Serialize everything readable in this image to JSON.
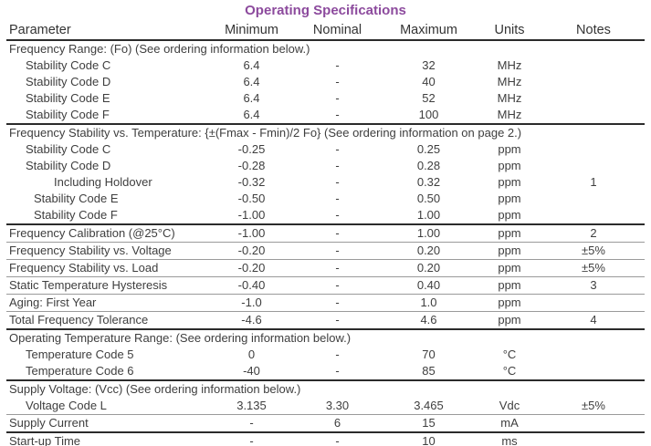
{
  "title": "Operating Specifications",
  "accent_color": "#8c4a9d",
  "table": {
    "columns": [
      "Parameter",
      "Minimum",
      "Nominal",
      "Maximum",
      "Units",
      "Notes"
    ],
    "rows": [
      {
        "type": "section",
        "indent": 0,
        "label": "Frequency Range: (Fo) (See ordering information below.)",
        "min": "",
        "nom": "",
        "max": "",
        "units": "",
        "notes": "",
        "sep": "none"
      },
      {
        "type": "data",
        "indent": 1,
        "label": "Stability Code C",
        "min": "6.4",
        "nom": "-",
        "max": "32",
        "units": "MHz",
        "notes": "",
        "sep": "none"
      },
      {
        "type": "data",
        "indent": 1,
        "label": "Stability Code D",
        "min": "6.4",
        "nom": "-",
        "max": "40",
        "units": "MHz",
        "notes": "",
        "sep": "none"
      },
      {
        "type": "data",
        "indent": 1,
        "label": "Stability Code E",
        "min": "6.4",
        "nom": "-",
        "max": "52",
        "units": "MHz",
        "notes": "",
        "sep": "none"
      },
      {
        "type": "data",
        "indent": 1,
        "label": "Stability Code F",
        "min": "6.4",
        "nom": "-",
        "max": "100",
        "units": "MHz",
        "notes": "",
        "sep": "thick"
      },
      {
        "type": "section",
        "indent": 0,
        "label": "Frequency Stability vs. Temperature: {±(Fmax - Fmin)/2 Fo} (See ordering information on page 2.)",
        "min": "",
        "nom": "",
        "max": "",
        "units": "",
        "notes": "",
        "sep": "none"
      },
      {
        "type": "data",
        "indent": 1,
        "label": "Stability Code C",
        "min": "-0.25",
        "nom": "-",
        "max": "0.25",
        "units": "ppm",
        "notes": "",
        "sep": "none"
      },
      {
        "type": "data",
        "indent": 1,
        "label": "Stability Code D",
        "min": "-0.28",
        "nom": "-",
        "max": "0.28",
        "units": "ppm",
        "notes": "",
        "sep": "none"
      },
      {
        "type": "data",
        "indent": 3,
        "label": "Including Holdover",
        "min": "-0.32",
        "nom": "-",
        "max": "0.32",
        "units": "ppm",
        "notes": "1",
        "sep": "none"
      },
      {
        "type": "data",
        "indent": 2,
        "label": "Stability Code E",
        "min": "-0.50",
        "nom": "-",
        "max": "0.50",
        "units": "ppm",
        "notes": "",
        "sep": "none"
      },
      {
        "type": "data",
        "indent": 2,
        "label": "Stability Code F",
        "min": "-1.00",
        "nom": "-",
        "max": "1.00",
        "units": "ppm",
        "notes": "",
        "sep": "thick"
      },
      {
        "type": "data",
        "indent": 0,
        "label": "Frequency Calibration (@25°C)",
        "min": "-1.00",
        "nom": "-",
        "max": "1.00",
        "units": "ppm",
        "notes": "2",
        "sep": "thin"
      },
      {
        "type": "data",
        "indent": 0,
        "label": "Frequency Stability vs. Voltage",
        "min": "-0.20",
        "nom": "-",
        "max": "0.20",
        "units": "ppm",
        "notes": "±5%",
        "sep": "thin"
      },
      {
        "type": "data",
        "indent": 0,
        "label": "Frequency Stability vs. Load",
        "min": "-0.20",
        "nom": "-",
        "max": "0.20",
        "units": "ppm",
        "notes": "±5%",
        "sep": "thin"
      },
      {
        "type": "data",
        "indent": 0,
        "label": "Static Temperature Hysteresis",
        "min": "-0.40",
        "nom": "-",
        "max": "0.40",
        "units": "ppm",
        "notes": "3",
        "sep": "thin"
      },
      {
        "type": "data",
        "indent": 0,
        "label": "Aging: First Year",
        "min": "-1.0",
        "nom": "-",
        "max": "1.0",
        "units": "ppm",
        "notes": "",
        "sep": "thin"
      },
      {
        "type": "data",
        "indent": 0,
        "label": "Total Frequency Tolerance",
        "min": "-4.6",
        "nom": "-",
        "max": "4.6",
        "units": "ppm",
        "notes": "4",
        "sep": "thick"
      },
      {
        "type": "section",
        "indent": 0,
        "label": "Operating Temperature Range: (See ordering information below.)",
        "min": "",
        "nom": "",
        "max": "",
        "units": "",
        "notes": "",
        "sep": "none"
      },
      {
        "type": "data",
        "indent": 1,
        "label": "Temperature Code 5",
        "min": "0",
        "nom": "-",
        "max": "70",
        "units": "°C",
        "notes": "",
        "sep": "none"
      },
      {
        "type": "data",
        "indent": 1,
        "label": "Temperature Code 6",
        "min": "-40",
        "nom": "-",
        "max": "85",
        "units": "°C",
        "notes": "",
        "sep": "thick"
      },
      {
        "type": "section",
        "indent": 0,
        "label": "Supply Voltage: (Vcc) (See ordering information below.)",
        "min": "",
        "nom": "",
        "max": "",
        "units": "",
        "notes": "",
        "sep": "none"
      },
      {
        "type": "data",
        "indent": 1,
        "label": "Voltage Code L",
        "min": "3.135",
        "nom": "3.30",
        "max": "3.465",
        "units": "Vdc",
        "notes": "±5%",
        "sep": "thin"
      },
      {
        "type": "data",
        "indent": 0,
        "label": "Supply Current",
        "min": "-",
        "nom": "6",
        "max": "15",
        "units": "mA",
        "notes": "",
        "sep": "thick"
      },
      {
        "type": "data",
        "indent": 0,
        "label": "Start-up Time",
        "min": "-",
        "nom": "-",
        "max": "10",
        "units": "ms",
        "notes": "",
        "sep": "thick"
      }
    ]
  }
}
